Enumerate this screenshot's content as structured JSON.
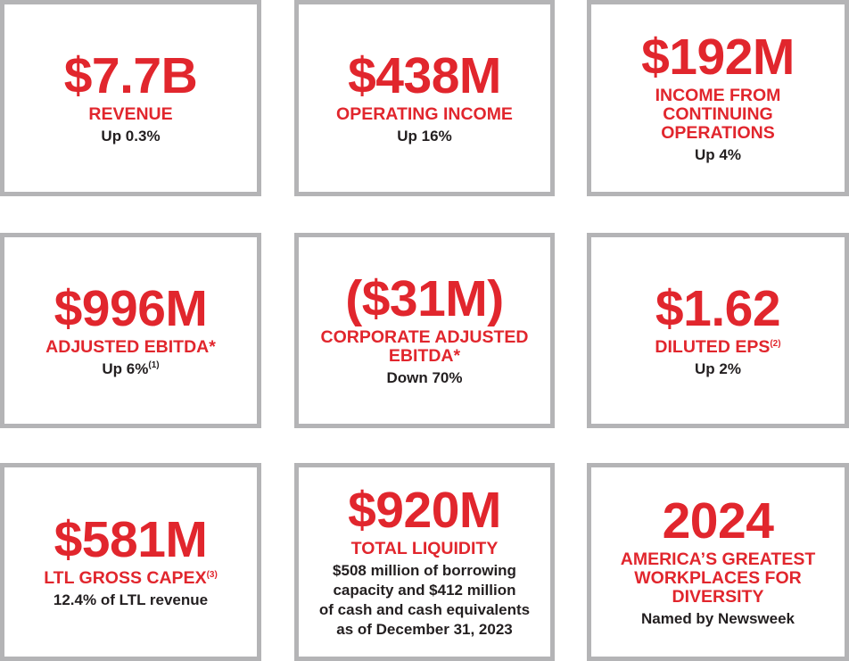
{
  "colors": {
    "accent": "#e1262d",
    "border": "#b4b4b6",
    "text": "#231f20"
  },
  "cards": [
    {
      "value": "$7.7B",
      "label": "REVENUE",
      "label_sup": "",
      "sub": "Up 0.3%",
      "sub_sup": ""
    },
    {
      "value": "$438M",
      "label": "OPERATING INCOME",
      "label_sup": "",
      "sub": "Up 16%",
      "sub_sup": ""
    },
    {
      "value": "$192M",
      "label": "INCOME FROM\nCONTINUING\nOPERATIONS",
      "label_sup": "",
      "sub": "Up 4%",
      "sub_sup": ""
    },
    {
      "value": "$996M",
      "label": "ADJUSTED EBITDA*",
      "label_sup": "",
      "sub": "Up 6%",
      "sub_sup": "(1)"
    },
    {
      "value": "($31M)",
      "label": "CORPORATE ADJUSTED\nEBITDA*",
      "label_sup": "",
      "sub": "Down 70%",
      "sub_sup": ""
    },
    {
      "value": "$1.62",
      "label": "DILUTED EPS",
      "label_sup": "(2)",
      "sub": "Up 2%",
      "sub_sup": ""
    },
    {
      "value": "$581M",
      "label": "LTL GROSS CAPEX",
      "label_sup": "(3)",
      "sub": "12.4% of LTL revenue",
      "sub_sup": ""
    },
    {
      "value": "$920M",
      "label": "TOTAL LIQUIDITY",
      "label_sup": "",
      "sub": "$508 million of borrowing\ncapacity and $412 million\nof cash and cash equivalents\nas of December 31, 2023",
      "sub_sup": ""
    },
    {
      "value": "2024",
      "label": "AMERICA’S GREATEST\nWORKPLACES FOR\nDIVERSITY",
      "label_sup": "",
      "sub": "Named by Newsweek",
      "sub_sup": ""
    }
  ]
}
